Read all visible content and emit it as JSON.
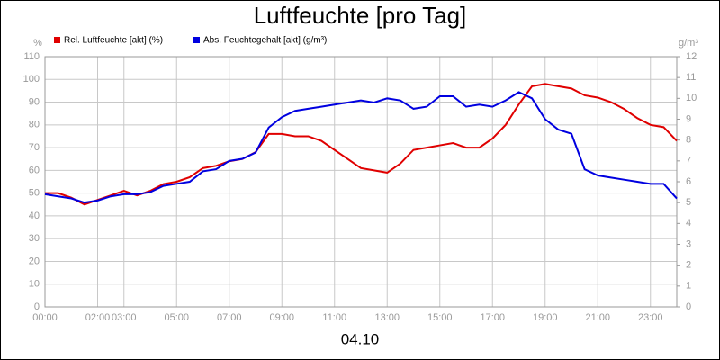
{
  "chart_data": {
    "type": "line",
    "title": "Luftfeuchte [pro Tag]",
    "x_label": "04.10",
    "y_label": "%",
    "y2_label": "g/m³",
    "x": [
      0,
      0.5,
      1,
      1.5,
      2,
      2.5,
      3,
      3.5,
      4,
      4.5,
      5,
      5.5,
      6,
      6.5,
      7,
      7.5,
      8,
      8.5,
      9,
      9.5,
      10,
      10.5,
      11,
      11.5,
      12,
      12.5,
      13,
      13.5,
      14,
      14.5,
      15,
      15.5,
      16,
      16.5,
      17,
      17.5,
      18,
      18.5,
      19,
      19.5,
      20,
      20.5,
      21,
      21.5,
      22,
      22.5,
      23,
      23.5,
      24
    ],
    "series": [
      {
        "name": "Rel. Luftfeuchte [akt] (%)",
        "color": "#e00000",
        "values": [
          50,
          50,
          48,
          45,
          47,
          49,
          51,
          49,
          51,
          54,
          55,
          57,
          61,
          62,
          64,
          65,
          68,
          76,
          76,
          75,
          75,
          73,
          69,
          65,
          61,
          60,
          59,
          63,
          69,
          70,
          71,
          72,
          70,
          70,
          74,
          80,
          89,
          97,
          98,
          97,
          96,
          93,
          92,
          90,
          87,
          83,
          80,
          79,
          73
        ]
      },
      {
        "name": "Abs. Feuchtegehalt [akt] (g/m³)",
        "color": "#0000e0",
        "axis": "y2",
        "values": [
          5.4,
          5.3,
          5.2,
          5.0,
          5.1,
          5.3,
          5.4,
          5.4,
          5.5,
          5.8,
          5.9,
          6.0,
          6.5,
          6.6,
          7.0,
          7.1,
          7.4,
          8.6,
          9.1,
          9.4,
          9.5,
          9.6,
          9.7,
          9.8,
          9.9,
          9.8,
          10.0,
          9.9,
          9.5,
          9.6,
          10.1,
          10.1,
          9.6,
          9.7,
          9.6,
          9.9,
          10.3,
          10.0,
          9.0,
          8.5,
          8.3,
          6.6,
          6.3,
          6.2,
          6.1,
          6.0,
          5.9,
          5.9,
          5.2
        ]
      }
    ],
    "xlim": [
      0,
      24
    ],
    "xticks": [
      {
        "value": 0,
        "label": "00:00"
      },
      {
        "value": 2,
        "label": "02:00"
      },
      {
        "value": 3,
        "label": "03:00"
      },
      {
        "value": 5,
        "label": "05:00"
      },
      {
        "value": 7,
        "label": "07:00"
      },
      {
        "value": 9,
        "label": "09:00"
      },
      {
        "value": 11,
        "label": "11:00"
      },
      {
        "value": 13,
        "label": "13:00"
      },
      {
        "value": 15,
        "label": "15:00"
      },
      {
        "value": 17,
        "label": "17:00"
      },
      {
        "value": 19,
        "label": "19:00"
      },
      {
        "value": 21,
        "label": "21:00"
      },
      {
        "value": 23,
        "label": "23:00"
      }
    ],
    "ylim": [
      0,
      110
    ],
    "yticks": [
      0,
      10,
      20,
      30,
      40,
      50,
      60,
      70,
      80,
      90,
      100,
      110
    ],
    "y2lim": [
      0,
      12
    ],
    "y2ticks": [
      0,
      1,
      2,
      3,
      4,
      5,
      6,
      7,
      8,
      9,
      10,
      11,
      12
    ],
    "grid": true
  }
}
